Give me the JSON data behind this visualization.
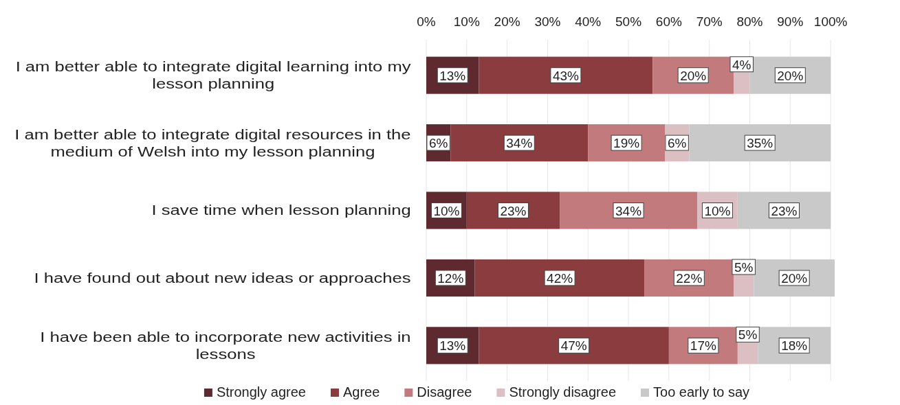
{
  "chart_data": {
    "type": "bar",
    "orientation": "horizontal",
    "stacked": true,
    "categories": [
      "I am better able to integrate digital learning into my lesson planning",
      "I am better able to integrate digital resources in the medium of Welsh into my lesson planning",
      "I save time when lesson planning",
      "I have found out about new ideas or approaches",
      "I have been able to incorporate new activities in lessons"
    ],
    "series": [
      {
        "name": "Strongly agree",
        "color": "#5e2a30",
        "values": [
          13,
          6,
          10,
          12,
          13
        ],
        "value_labels": [
          "13%",
          "6%",
          "10%",
          "12%",
          "13%"
        ]
      },
      {
        "name": "Agree",
        "color": "#8b3c3f",
        "values": [
          43,
          34,
          23,
          42,
          47
        ],
        "value_labels": [
          "43%",
          "34%",
          "23%",
          "42%",
          "47%"
        ]
      },
      {
        "name": "Disagree",
        "color": "#c27a7c",
        "values": [
          20,
          19,
          34,
          22,
          17
        ],
        "value_labels": [
          "20%",
          "19%",
          "34%",
          "22%",
          "17%"
        ]
      },
      {
        "name": "Strongly disagree",
        "color": "#dcbfc2",
        "values": [
          4,
          6,
          10,
          5,
          5
        ],
        "value_labels": [
          "4%",
          "6%",
          "10%",
          "5%",
          "5%"
        ]
      },
      {
        "name": "Too early to say",
        "color": "#c9c9c9",
        "values": [
          20,
          35,
          23,
          20,
          18
        ],
        "value_labels": [
          "20%",
          "35%",
          "23%",
          "20%",
          "18%"
        ]
      }
    ],
    "xlim": [
      0,
      101
    ],
    "xticks": [
      {
        "value": 0,
        "label": "0%"
      },
      {
        "value": 10,
        "label": "10%"
      },
      {
        "value": 20,
        "label": "20%"
      },
      {
        "value": 30,
        "label": "30%"
      },
      {
        "value": 40,
        "label": "40%"
      },
      {
        "value": 50,
        "label": "50%"
      },
      {
        "value": 60,
        "label": "60%"
      },
      {
        "value": 70,
        "label": "70%"
      },
      {
        "value": 80,
        "label": "80%"
      },
      {
        "value": 90,
        "label": "90%"
      },
      {
        "value": 100,
        "label": "100%"
      }
    ],
    "grid": "x",
    "legend": "bottom"
  }
}
